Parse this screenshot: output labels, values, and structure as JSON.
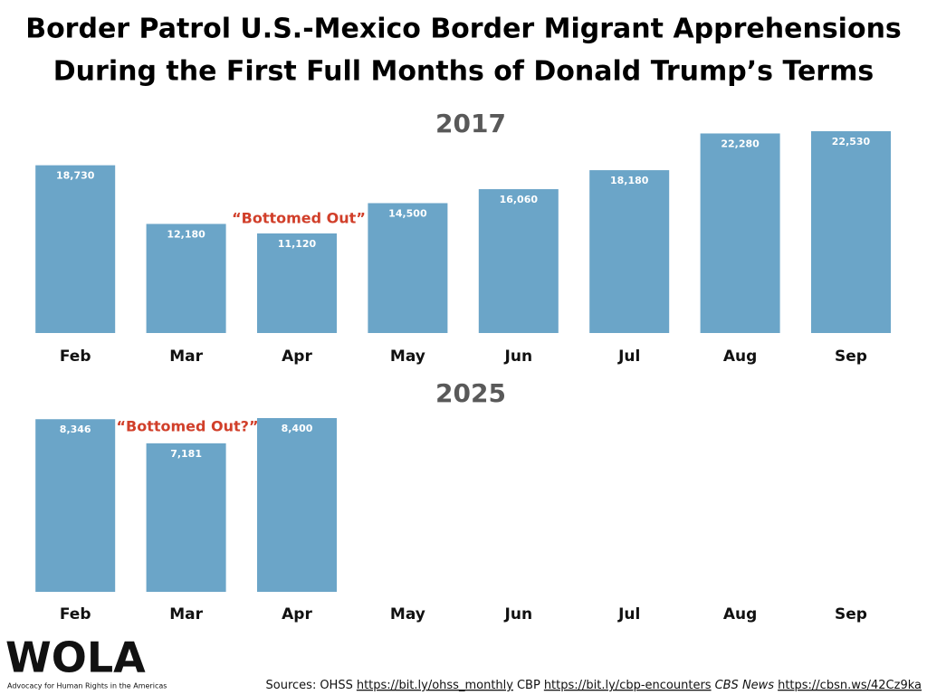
{
  "title_lines": [
    "Border Patrol U.S.-Mexico Border Migrant Apprehensions",
    "During the First Full Months of Donald Trump’s Terms"
  ],
  "chart_data": [
    {
      "type": "bar",
      "title": "2017",
      "color": "#6ba5c8",
      "categories": [
        "Feb",
        "Mar",
        "Apr",
        "May",
        "Jun",
        "Jul",
        "Aug",
        "Sep"
      ],
      "values": [
        18730,
        12180,
        11120,
        14500,
        16060,
        18180,
        22280,
        22530
      ],
      "value_labels": [
        "18,730",
        "12,180",
        "11,120",
        "14,500",
        "16,060",
        "18,180",
        "22,280",
        "22,530"
      ],
      "annotation": "“Bottomed Out”",
      "annotation_color": "#d13f2a"
    },
    {
      "type": "bar",
      "title": "2025",
      "color": "#6ba5c8",
      "categories": [
        "Feb",
        "Mar",
        "Apr",
        "May",
        "Jun",
        "Jul",
        "Aug",
        "Sep"
      ],
      "values": [
        8346,
        7181,
        8400,
        null,
        null,
        null,
        null,
        null
      ],
      "value_labels": [
        "8,346",
        "7,181",
        "8,400",
        null,
        null,
        null,
        null,
        null
      ],
      "annotation": "“Bottomed Out?”",
      "annotation_color": "#d13f2a"
    }
  ],
  "logo": {
    "name": "WOLA",
    "tagline": "Advocacy for Human Rights in the Americas"
  },
  "sources": {
    "prefix": "Sources:",
    "items": [
      {
        "label": "OHSS",
        "url": "https://bit.ly/ohss_monthly",
        "italic": false
      },
      {
        "label": "CBP",
        "url": "https://bit.ly/cbp-encounters",
        "italic": false
      },
      {
        "label": "CBS News",
        "url": "https://cbsn.ws/42Cz9ka",
        "italic": true
      }
    ]
  }
}
